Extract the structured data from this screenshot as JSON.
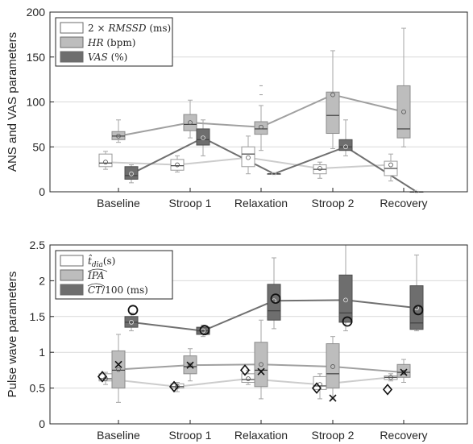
{
  "chart_data": [
    {
      "type": "box",
      "ylabel": "ANS and VAS parameters",
      "ylim": [
        0,
        200
      ],
      "yticks": [
        0,
        50,
        100,
        150,
        200
      ],
      "grid": "horizontal",
      "legend_position": "top-left",
      "categories": [
        "Baseline",
        "Stroop 1",
        "Relaxation",
        "Stroop 2",
        "Recovery"
      ],
      "series": [
        {
          "name": "2 × RMSSD (ms)",
          "legend_parts": [
            "2 × ",
            "RMSSD",
            " (ms)"
          ],
          "box_color": "#ffffff",
          "line_color": "#cccccc",
          "boxes": [
            {
              "whisker_low": 25,
              "q1": 28,
              "median": 32,
              "q3": 42,
              "whisker_high": 45,
              "mean": 33
            },
            {
              "whisker_low": 22,
              "q1": 24,
              "median": 29,
              "q3": 36,
              "whisker_high": 40,
              "mean": 30
            },
            {
              "whisker_low": 20,
              "q1": 28,
              "median": 42,
              "q3": 50,
              "whisker_high": 62,
              "mean": 38
            },
            {
              "whisker_low": 15,
              "q1": 20,
              "median": 25,
              "q3": 30,
              "whisker_high": 33,
              "mean": 26
            },
            {
              "whisker_low": 12,
              "q1": 18,
              "median": 26,
              "q3": 34,
              "whisker_high": 42,
              "mean": 30
            }
          ],
          "outliers": []
        },
        {
          "name": "HR (bpm)",
          "legend_parts": [
            "",
            "HR",
            " (bpm)"
          ],
          "box_color": "#bdbdbd",
          "line_color": "#a0a0a0",
          "boxes": [
            {
              "whisker_low": 55,
              "q1": 58,
              "median": 62,
              "q3": 67,
              "whisker_high": 80,
              "mean": 62
            },
            {
              "whisker_low": 60,
              "q1": 68,
              "median": 75,
              "q3": 86,
              "whisker_high": 102,
              "mean": 77
            },
            {
              "whisker_low": 46,
              "q1": 64,
              "median": 70,
              "q3": 78,
              "whisker_high": 96,
              "mean": 72
            },
            {
              "whisker_low": 48,
              "q1": 65,
              "median": 85,
              "q3": 111,
              "whisker_high": 157,
              "mean": 108
            },
            {
              "whisker_low": 50,
              "q1": 60,
              "median": 70,
              "q3": 118,
              "whisker_high": 182,
              "mean": 89
            }
          ],
          "outliers": [
            {
              "category": 2,
              "value": 118
            },
            {
              "category": 2,
              "value": 108
            }
          ]
        },
        {
          "name": "VAS (%)",
          "legend_parts": [
            "",
            "VAS",
            " (%)"
          ],
          "box_color": "#6e6e6e",
          "line_color": "#707070",
          "boxes": [
            {
              "whisker_low": 10,
              "q1": 14,
              "median": 18,
              "q3": 28,
              "whisker_high": 30,
              "mean": 20
            },
            {
              "whisker_low": 40,
              "q1": 52,
              "median": 58,
              "q3": 70,
              "whisker_high": 80,
              "mean": 60
            },
            {
              "whisker_low": 20,
              "q1": 20,
              "median": 20,
              "q3": 20,
              "whisker_high": 20,
              "mean": 20
            },
            {
              "whisker_low": 40,
              "q1": 46,
              "median": 50,
              "q3": 58,
              "whisker_high": 80,
              "mean": 50
            },
            {
              "whisker_low": 0,
              "q1": 0,
              "median": 0,
              "q3": 0,
              "whisker_high": 0,
              "mean": 0
            }
          ],
          "outliers": []
        }
      ]
    },
    {
      "type": "box",
      "ylabel": "Pulse wave parameters",
      "ylim": [
        0,
        2.5
      ],
      "yticks": [
        0,
        0.5,
        1,
        1.5,
        2,
        2.5
      ],
      "grid": "horizontal",
      "legend_position": "top-left",
      "categories": [
        "Baseline",
        "Stroop 1",
        "Relaxation",
        "Stroop 2",
        "Recovery"
      ],
      "series": [
        {
          "name": "t̂_dia(s)",
          "legend_parts": [
            "t̂",
            "dia",
            "(s)"
          ],
          "box_color": "#ffffff",
          "line_color": "#cccccc",
          "boxes": [
            {
              "whisker_low": 0.55,
              "q1": 0.6,
              "median": 0.63,
              "q3": 0.7,
              "whisker_high": 0.72,
              "mean": 0.63
            },
            {
              "whisker_low": 0.45,
              "q1": 0.5,
              "median": 0.52,
              "q3": 0.56,
              "whisker_high": 0.58,
              "mean": 0.52
            },
            {
              "whisker_low": 0.55,
              "q1": 0.58,
              "median": 0.62,
              "q3": 0.7,
              "whisker_high": 0.75,
              "mean": 0.63
            },
            {
              "whisker_low": 0.35,
              "q1": 0.48,
              "median": 0.53,
              "q3": 0.66,
              "whisker_high": 0.7,
              "mean": 0.55
            },
            {
              "whisker_low": 0.6,
              "q1": 0.62,
              "median": 0.65,
              "q3": 0.67,
              "whisker_high": 0.7,
              "mean": 0.65
            }
          ],
          "markers": [
            {
              "category": 0,
              "symbol": "diamond",
              "value": 0.66
            },
            {
              "category": 1,
              "symbol": "diamond",
              "value": 0.52
            },
            {
              "category": 2,
              "symbol": "diamond",
              "value": 0.75
            },
            {
              "category": 3,
              "symbol": "diamond",
              "value": 0.5
            },
            {
              "category": 4,
              "symbol": "diamond",
              "value": 0.48
            }
          ]
        },
        {
          "name": "IPA",
          "legend_parts": [
            "",
            "IPA",
            ""
          ],
          "box_color": "#bdbdbd",
          "line_color": "#a0a0a0",
          "boxes": [
            {
              "whisker_low": 0.3,
              "q1": 0.5,
              "median": 0.75,
              "q3": 1.02,
              "whisker_high": 1.25,
              "mean": 0.76
            },
            {
              "whisker_low": 0.6,
              "q1": 0.7,
              "median": 0.8,
              "q3": 0.95,
              "whisker_high": 1.05,
              "mean": 0.82
            },
            {
              "whisker_low": 0.35,
              "q1": 0.52,
              "median": 0.75,
              "q3": 1.14,
              "whisker_high": 1.45,
              "mean": 0.83
            },
            {
              "whisker_low": 0.35,
              "q1": 0.5,
              "median": 0.7,
              "q3": 1.12,
              "whisker_high": 1.22,
              "mean": 0.8
            },
            {
              "whisker_low": 0.58,
              "q1": 0.65,
              "median": 0.72,
              "q3": 0.83,
              "whisker_high": 0.9,
              "mean": 0.72
            }
          ],
          "markers": [
            {
              "category": 0,
              "symbol": "x",
              "value": 0.83
            },
            {
              "category": 1,
              "symbol": "x",
              "value": 0.82
            },
            {
              "category": 2,
              "symbol": "x",
              "value": 0.73
            },
            {
              "category": 3,
              "symbol": "x",
              "value": 0.36
            },
            {
              "category": 4,
              "symbol": "x",
              "value": 0.72
            }
          ]
        },
        {
          "name": "CT/100 (ms)",
          "legend_parts": [
            "",
            "CT",
            "/100 (ms)"
          ],
          "box_color": "#6e6e6e",
          "line_color": "#707070",
          "boxes": [
            {
              "whisker_low": 1.3,
              "q1": 1.35,
              "median": 1.42,
              "q3": 1.5,
              "whisker_high": 1.55,
              "mean": 1.42
            },
            {
              "whisker_low": 1.22,
              "q1": 1.25,
              "median": 1.3,
              "q3": 1.35,
              "whisker_high": 1.38,
              "mean": 1.3
            },
            {
              "whisker_low": 1.33,
              "q1": 1.45,
              "median": 1.58,
              "q3": 1.95,
              "whisker_high": 2.32,
              "mean": 1.72
            },
            {
              "whisker_low": 1.3,
              "q1": 1.42,
              "median": 1.55,
              "q3": 2.08,
              "whisker_high": 2.5,
              "mean": 1.73
            },
            {
              "whisker_low": 1.3,
              "q1": 1.32,
              "median": 1.41,
              "q3": 1.93,
              "whisker_high": 2.36,
              "mean": 1.62
            }
          ],
          "markers": [
            {
              "category": 0,
              "symbol": "circle",
              "value": 1.59
            },
            {
              "category": 1,
              "symbol": "circle",
              "value": 1.31
            },
            {
              "category": 2,
              "symbol": "circle",
              "value": 1.75
            },
            {
              "category": 3,
              "symbol": "circle",
              "value": 1.43
            },
            {
              "category": 4,
              "symbol": "circle",
              "value": 1.59
            }
          ]
        }
      ]
    }
  ]
}
